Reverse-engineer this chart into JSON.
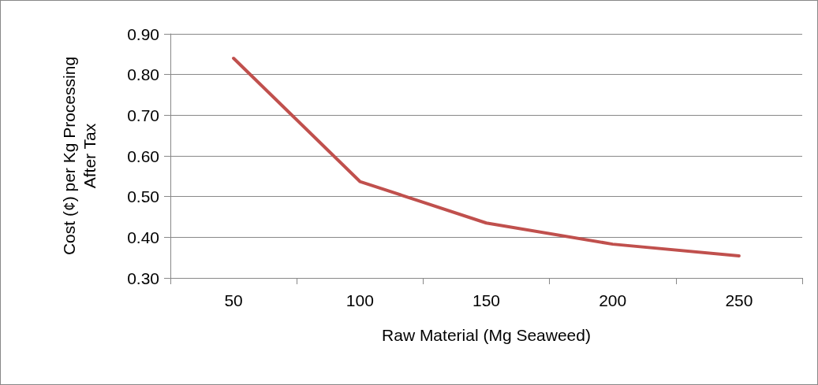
{
  "chart_data": {
    "type": "line",
    "xlabel": "Raw Material (Mg Seaweed)",
    "ylabel": "Cost (¢) per Kg Processing After Tax",
    "categories": [
      "50",
      "100",
      "150",
      "200",
      "250"
    ],
    "series": [
      {
        "color": "#c0504d",
        "values": [
          0.84,
          0.537,
          0.435,
          0.383,
          0.354
        ]
      }
    ],
    "ylim": [
      0.3,
      0.9
    ],
    "yticks": [
      {
        "value": 0.3,
        "label": "0.30"
      },
      {
        "value": 0.4,
        "label": "0.40"
      },
      {
        "value": 0.5,
        "label": "0.50"
      },
      {
        "value": 0.6,
        "label": "0.60"
      },
      {
        "value": 0.7,
        "label": "0.70"
      },
      {
        "value": 0.8,
        "label": "0.80"
      },
      {
        "value": 0.9,
        "label": "0.90"
      }
    ],
    "grid": "y",
    "marker": "none",
    "line_style": "solid"
  }
}
